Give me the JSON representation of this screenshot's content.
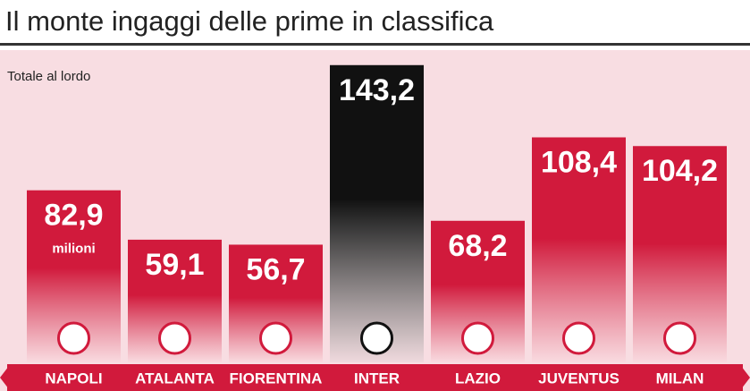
{
  "chart_data": {
    "type": "bar",
    "title": "Il monte ingaggi delle prime in classifica",
    "subtitle": "Totale al lordo",
    "annotation": "milioni",
    "categories": [
      "NAPOLI",
      "ATALANTA",
      "FIORENTINA",
      "INTER",
      "LAZIO",
      "JUVENTUS",
      "MILAN"
    ],
    "values": [
      82.9,
      59.1,
      56.7,
      143.2,
      68.2,
      108.4,
      104.2
    ],
    "value_labels": [
      "82,9",
      "59,1",
      "56,7",
      "143,2",
      "68,2",
      "108,4",
      "104,2"
    ],
    "colors": [
      "#d11a3c",
      "#d11a3c",
      "#d11a3c",
      "#111111",
      "#d11a3c",
      "#d11a3c",
      "#d11a3c"
    ]
  }
}
